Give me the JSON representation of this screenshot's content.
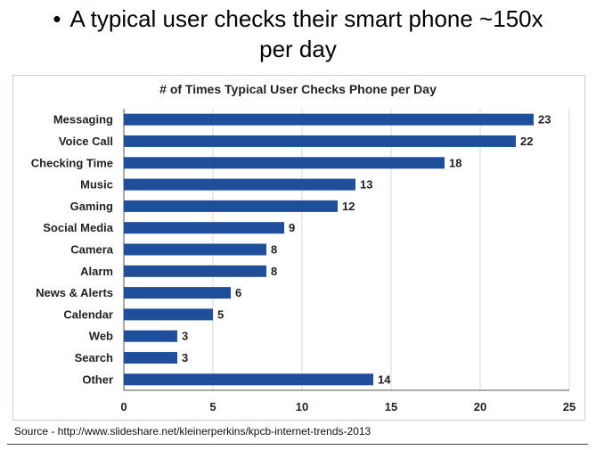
{
  "slide": {
    "bullet": "•",
    "title_line1": "A typical user checks their smart phone ~150x",
    "title_line2": "per day"
  },
  "source": "Source - http://www.slideshare.net/kleinerperkins/kpcb-internet-trends-2013",
  "colors": {
    "bar": "#1f4f9a",
    "grid": "#d9d9d9",
    "axis": "#555555"
  },
  "chart_data": {
    "type": "bar",
    "orientation": "horizontal",
    "title": "# of Times Typical User Checks Phone per Day",
    "categories": [
      "Messaging",
      "Voice Call",
      "Checking Time",
      "Music",
      "Gaming",
      "Social Media",
      "Camera",
      "Alarm",
      "News & Alerts",
      "Calendar",
      "Web",
      "Search",
      "Other"
    ],
    "values": [
      23,
      22,
      18,
      13,
      12,
      9,
      8,
      8,
      6,
      5,
      3,
      3,
      14
    ],
    "xlim": [
      0,
      25
    ],
    "xticks": [
      0,
      5,
      10,
      15,
      20,
      25
    ],
    "grid": true,
    "data_labels": true
  }
}
